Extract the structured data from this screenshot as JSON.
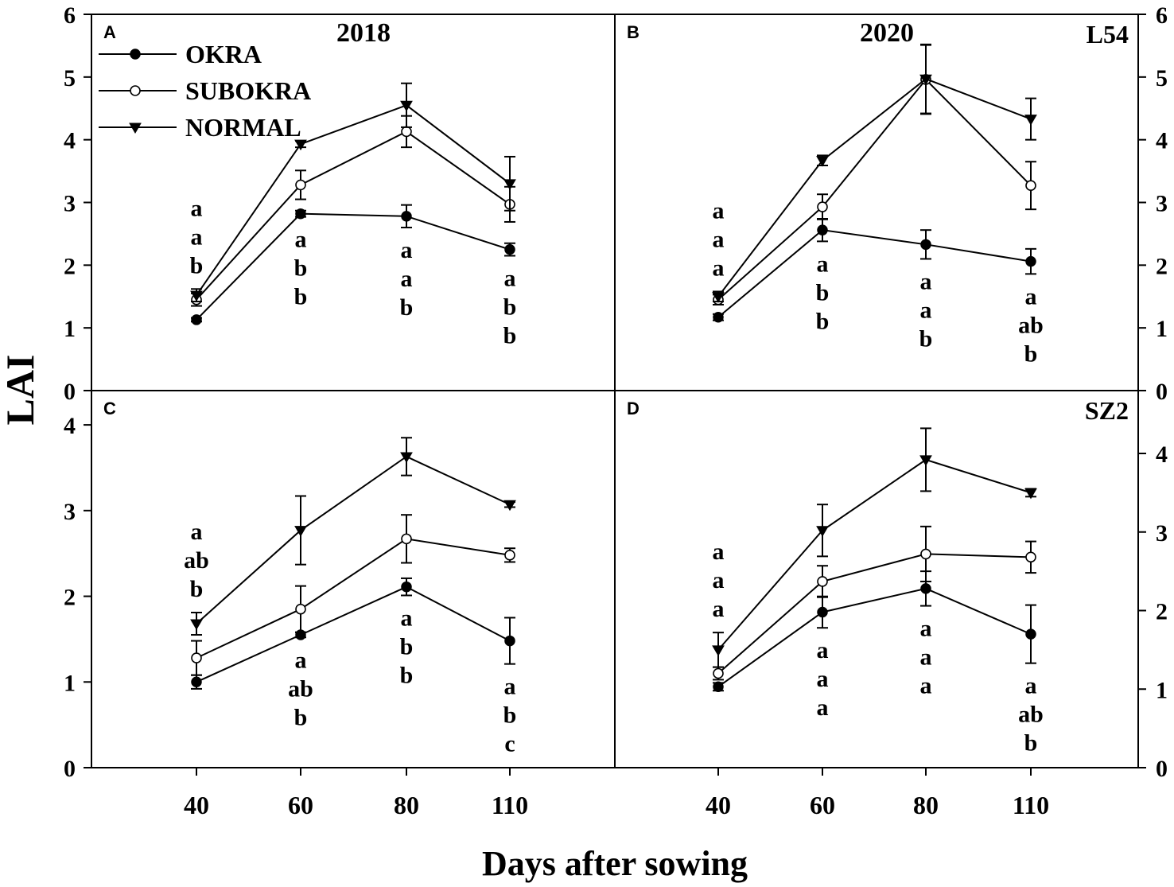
{
  "chart_data": {
    "type": "line",
    "ylabel": "LAI",
    "xlabel": "Days after sowing",
    "categories": [
      "40",
      "60",
      "80",
      "110"
    ],
    "legend": [
      "OKRA",
      "SUBOKRA",
      "NORMAL"
    ],
    "panels": [
      {
        "id": "A",
        "title": "2018",
        "corner_label": "",
        "ylim": [
          0,
          6
        ],
        "yticks": [
          "0",
          "1",
          "2",
          "3",
          "4",
          "5",
          "6"
        ],
        "series": [
          {
            "name": "OKRA",
            "values": [
              1.13,
              2.82,
              2.78,
              2.25
            ],
            "errors": [
              0.03,
              0.05,
              0.18,
              0.1
            ]
          },
          {
            "name": "SUBOKRA",
            "values": [
              1.45,
              3.28,
              4.13,
              2.97
            ],
            "errors": [
              0.1,
              0.23,
              0.25,
              0.28
            ]
          },
          {
            "name": "NORMAL",
            "values": [
              1.52,
              3.93,
              4.55,
              3.3
            ],
            "errors": [
              0.1,
              0.05,
              0.35,
              0.43
            ]
          }
        ],
        "letters": [
          [
            "a",
            "a",
            "b"
          ],
          [
            "a",
            "b",
            "b"
          ],
          [
            "a",
            "a",
            "b"
          ],
          [
            "a",
            "b",
            "b"
          ]
        ]
      },
      {
        "id": "B",
        "title": "2020",
        "corner_label": "L54",
        "ylim": [
          0,
          6
        ],
        "yticks": [
          "0",
          "1",
          "2",
          "3",
          "4",
          "5",
          "6"
        ],
        "series": [
          {
            "name": "OKRA",
            "values": [
              1.17,
              2.56,
              2.33,
              2.06
            ],
            "errors": [
              0.05,
              0.18,
              0.23,
              0.2
            ]
          },
          {
            "name": "SUBOKRA",
            "values": [
              1.45,
              2.93,
              4.96,
              3.27
            ],
            "errors": [
              0.08,
              0.2,
              0.55,
              0.38
            ]
          },
          {
            "name": "NORMAL",
            "values": [
              1.5,
              3.67,
              4.97,
              4.33
            ],
            "errors": [
              0.08,
              0.08,
              0.55,
              0.33
            ]
          }
        ],
        "letters": [
          [
            "a",
            "a",
            "a"
          ],
          [
            "a",
            "b",
            "b"
          ],
          [
            "a",
            "a",
            "b"
          ],
          [
            "a",
            "ab",
            "b"
          ]
        ]
      },
      {
        "id": "C",
        "title": "",
        "corner_label": "",
        "ylim": [
          0,
          4.4
        ],
        "yticks": [
          "0",
          "1",
          "2",
          "3",
          "4"
        ],
        "series": [
          {
            "name": "OKRA",
            "values": [
              1.0,
              1.55,
              2.11,
              1.48
            ],
            "errors": [
              0.08,
              0.03,
              0.1,
              0.27
            ]
          },
          {
            "name": "SUBOKRA",
            "values": [
              1.28,
              1.85,
              2.67,
              2.48
            ],
            "errors": [
              0.2,
              0.27,
              0.28,
              0.08
            ]
          },
          {
            "name": "NORMAL",
            "values": [
              1.68,
              2.77,
              3.63,
              3.07
            ],
            "errors": [
              0.13,
              0.4,
              0.22,
              0.03
            ]
          }
        ],
        "letters": [
          [
            "a",
            "ab",
            "b"
          ],
          [
            "a",
            "ab",
            "b"
          ],
          [
            "a",
            "b",
            "b"
          ],
          [
            "a",
            "b",
            "c"
          ]
        ]
      },
      {
        "id": "D",
        "title": "",
        "corner_label": "SZ2",
        "ylim": [
          0,
          4.8
        ],
        "yticks": [
          "0",
          "1",
          "2",
          "3",
          "4"
        ],
        "series": [
          {
            "name": "OKRA",
            "values": [
              1.03,
              1.98,
              2.28,
              1.7
            ],
            "errors": [
              0.05,
              0.2,
              0.22,
              0.37
            ]
          },
          {
            "name": "SUBOKRA",
            "values": [
              1.2,
              2.37,
              2.72,
              2.68
            ],
            "errors": [
              0.08,
              0.2,
              0.35,
              0.2
            ]
          },
          {
            "name": "NORMAL",
            "values": [
              1.5,
              3.02,
              3.92,
              3.5
            ],
            "errors": [
              0.22,
              0.33,
              0.4,
              0.05
            ]
          }
        ],
        "letters": [
          [
            "a",
            "a",
            "a"
          ],
          [
            "a",
            "a",
            "a"
          ],
          [
            "a",
            "a",
            "a"
          ],
          [
            "a",
            "ab",
            "b"
          ]
        ]
      }
    ]
  }
}
